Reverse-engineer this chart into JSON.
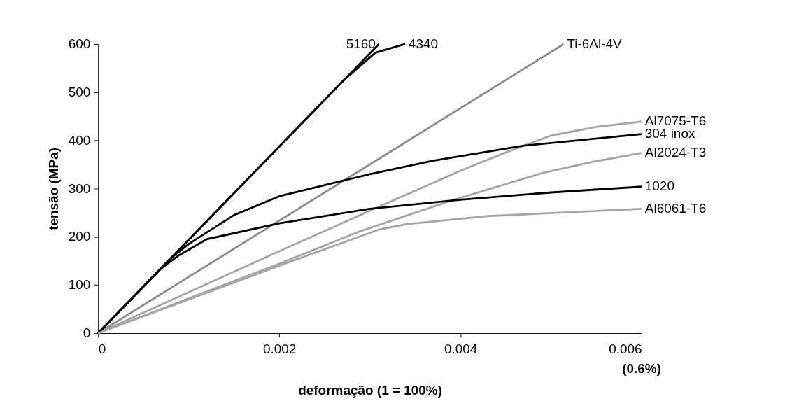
{
  "chart_data": {
    "type": "line",
    "xlabel": "deformação (1 = 100%)",
    "ylabel": "tensão (MPa)",
    "xlim": [
      0,
      0.006
    ],
    "ylim": [
      0,
      600
    ],
    "xticks": [
      0,
      0.002,
      0.004,
      0.006
    ],
    "yticks": [
      0,
      100,
      200,
      300,
      400,
      500,
      600
    ],
    "grid": false,
    "marker": "none",
    "line_style": "solid",
    "annotations": [
      "(0.6%)"
    ],
    "series": [
      {
        "name": "5160",
        "color": "#000000",
        "x": [
          0,
          0.0031
        ],
        "values": [
          0,
          600
        ]
      },
      {
        "name": "4340",
        "color": "#000000",
        "x": [
          0,
          0.0027,
          0.00306,
          0.00339
        ],
        "values": [
          0,
          523,
          582,
          600
        ]
      },
      {
        "name": "Ti-6Al-4V",
        "color": "#8c8c8c",
        "x": [
          0,
          0.00514
        ],
        "values": [
          0,
          600
        ]
      },
      {
        "name": "Al7075-T6",
        "color": "#a6a6a6",
        "x": [
          0,
          0.001,
          0.002,
          0.003,
          0.004,
          0.0045,
          0.005,
          0.0055,
          0.006
        ],
        "values": [
          0,
          85,
          170,
          254,
          337,
          375,
          410,
          428,
          439
        ]
      },
      {
        "name": "304 inox",
        "color": "#000000",
        "x": [
          0,
          0.0008,
          0.001,
          0.0015,
          0.002,
          0.003,
          0.0037,
          0.0047,
          0.006
        ],
        "values": [
          0,
          155,
          185,
          245,
          284,
          330,
          358,
          389,
          413
        ]
      },
      {
        "name": "Al2024-T3",
        "color": "#a6a6a6",
        "x": [
          0,
          0.001,
          0.002,
          0.0029,
          0.0039,
          0.0049,
          0.0055,
          0.006
        ],
        "values": [
          0,
          72,
          144,
          212,
          275,
          332,
          357,
          374
        ]
      },
      {
        "name": "1020",
        "color": "#000000",
        "x": [
          0,
          0.0007,
          0.00088,
          0.0012,
          0.002,
          0.003,
          0.004,
          0.005,
          0.006
        ],
        "values": [
          0,
          135,
          160,
          195,
          228,
          258,
          277,
          292,
          304
        ]
      },
      {
        "name": "Al6061-T6",
        "color": "#a6a6a6",
        "x": [
          0,
          0.001,
          0.002,
          0.0031,
          0.0034,
          0.0043,
          0.006
        ],
        "values": [
          0,
          70,
          140,
          215,
          226,
          243,
          258
        ]
      }
    ]
  }
}
